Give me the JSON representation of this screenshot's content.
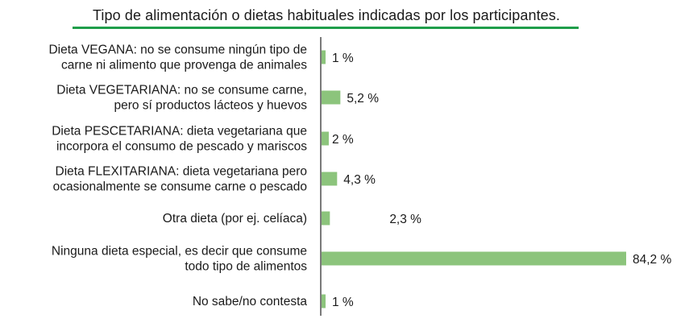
{
  "chart_data": {
    "type": "bar",
    "orientation": "horizontal",
    "title": "Tipo de alimentación o dietas habituales indicadas por los participantes.",
    "categories": [
      [
        "Dieta VEGANA: no se consume ningún tipo de",
        "carne ni alimento que provenga de animales"
      ],
      [
        "Dieta VEGETARIANA: no se consume carne,",
        "pero sí productos lácteos y huevos"
      ],
      [
        "Dieta PESCETARIANA: dieta vegetariana que",
        "incorpora el consumo de pescado y mariscos"
      ],
      [
        "Dieta FLEXITARIANA: dieta vegetariana pero",
        "ocasionalmente se consume carne o pescado"
      ],
      [
        "Otra dieta (por ej. celíaca)"
      ],
      [
        "Ninguna dieta especial, es decir que consume",
        "todo tipo de alimentos"
      ],
      [
        "No sabe/no contesta"
      ]
    ],
    "values": [
      1,
      5.2,
      2,
      4.3,
      2.3,
      84.2,
      1
    ],
    "value_labels": [
      "1 %",
      "5,2 %",
      "2 %",
      "4,3 %",
      "2,3 %",
      "84,2 %",
      "1 %"
    ],
    "bar_color": "#8cc47c",
    "axis_color": "#333333",
    "title_underline_color": "#1f9e4a",
    "grid": false,
    "legend": "none"
  }
}
